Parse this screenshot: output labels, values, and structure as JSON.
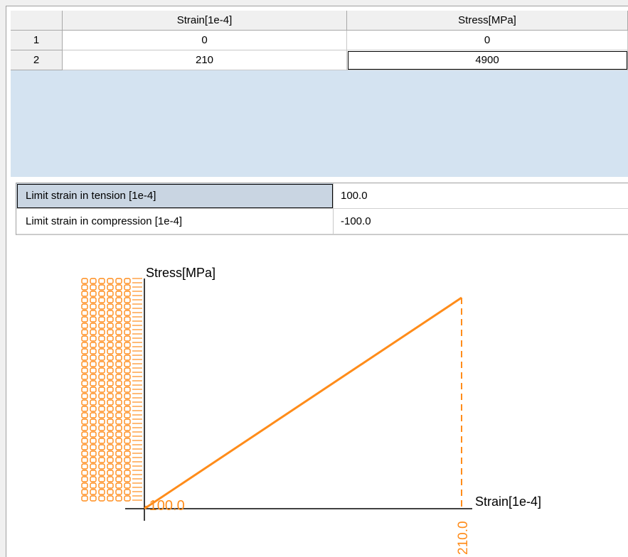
{
  "table": {
    "columns": [
      "",
      "Strain[1e-4]",
      "Stress[MPa]"
    ],
    "rows": [
      {
        "index": "1",
        "strain": "0",
        "stress": "0"
      },
      {
        "index": "2",
        "strain": "210",
        "stress": "4900"
      }
    ]
  },
  "limits": {
    "tension_label": "Limit strain in tension [1e-4]",
    "tension_value": "100.0",
    "compression_label": "Limit strain in compression [1e-4]",
    "compression_value": "-100.0"
  },
  "colors": {
    "curve": "#ff8c1a",
    "axis": "#000000",
    "grid_bg": "#d4e3f1"
  },
  "chart_data": {
    "type": "line",
    "xlabel": "Strain[1e-4]",
    "ylabel": "Stress[MPa]",
    "series": [
      {
        "x": [
          0,
          210
        ],
        "y": [
          0,
          4900
        ]
      }
    ],
    "x_marker_label": "210.0",
    "origin_label": "-100.0",
    "xlim": [
      0,
      210
    ],
    "ylim": [
      0,
      4900
    ],
    "grid": false
  }
}
